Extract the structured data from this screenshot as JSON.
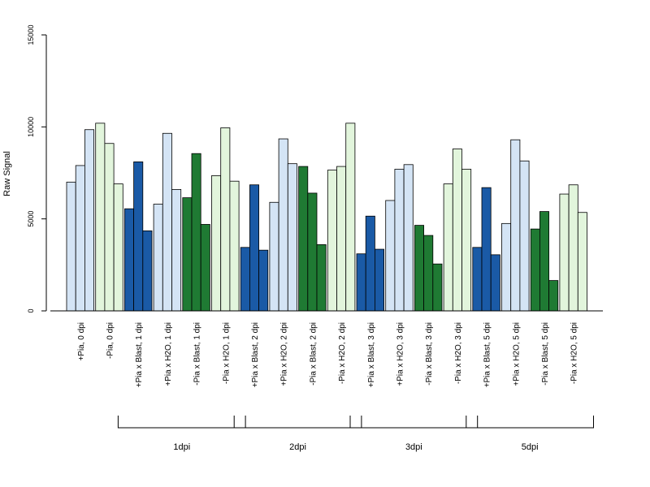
{
  "chart_data": {
    "type": "bar",
    "ylabel": "Raw Signal",
    "ylim": [
      0,
      15000
    ],
    "yticks": [
      0,
      5000,
      10000,
      15000
    ],
    "grid": false,
    "legend": "none",
    "colors": {
      "light_blue": "#d4e4f5",
      "light_green": "#e2f5dc",
      "dark_blue": "#1a5aa6",
      "dark_green": "#1f7a33",
      "edge": "#000000"
    },
    "categories": [
      {
        "label": "+Pia, 0 dpi",
        "color": "light_blue",
        "values": [
          7000,
          7900,
          9850
        ]
      },
      {
        "label": "-Pia, 0 dpi",
        "color": "light_green",
        "values": [
          10200,
          9100,
          6900
        ]
      },
      {
        "label": "+Pia x Blast, 1 dpi",
        "color": "dark_blue",
        "values": [
          5550,
          8100,
          4350
        ]
      },
      {
        "label": "+Pia x H2O, 1 dpi",
        "color": "light_blue",
        "values": [
          5800,
          9650,
          6600
        ]
      },
      {
        "label": "-Pia x Blast, 1 dpi",
        "color": "dark_green",
        "values": [
          6150,
          8550,
          4700
        ]
      },
      {
        "label": "-Pia x H2O, 1 dpi",
        "color": "light_green",
        "values": [
          7350,
          9950,
          7050
        ]
      },
      {
        "label": "+Pia x Blast, 2 dpi",
        "color": "dark_blue",
        "values": [
          3450,
          6850,
          3300
        ]
      },
      {
        "label": "+Pia x H2O, 2 dpi",
        "color": "light_blue",
        "values": [
          5900,
          9350,
          8000
        ]
      },
      {
        "label": "-Pia x Blast, 2 dpi",
        "color": "dark_green",
        "values": [
          7850,
          6400,
          3600
        ]
      },
      {
        "label": "-Pia x H2O, 2 dpi",
        "color": "light_green",
        "values": [
          7650,
          7850,
          10200
        ]
      },
      {
        "label": "+Pia x Blast, 3 dpi",
        "color": "dark_blue",
        "values": [
          3100,
          5150,
          3350
        ]
      },
      {
        "label": "+Pia x H2O, 3 dpi",
        "color": "light_blue",
        "values": [
          6000,
          7700,
          7950
        ]
      },
      {
        "label": "-Pia x Blast, 3 dpi",
        "color": "dark_green",
        "values": [
          4650,
          4100,
          2550
        ]
      },
      {
        "label": "-Pia x H2O, 3 dpi",
        "color": "light_green",
        "values": [
          6900,
          8800,
          7700
        ]
      },
      {
        "label": "+Pia x Blast, 5 dpi",
        "color": "dark_blue",
        "values": [
          3450,
          6700,
          3050
        ]
      },
      {
        "label": "+Pia x H2O, 5 dpi",
        "color": "light_blue",
        "values": [
          4750,
          9300,
          8150
        ]
      },
      {
        "label": "-Pia x Blast, 5 dpi",
        "color": "dark_green",
        "values": [
          4450,
          5400,
          1650
        ]
      },
      {
        "label": "-Pia x H2O, 5 dpi",
        "color": "light_green",
        "values": [
          6350,
          6850,
          5350
        ]
      }
    ],
    "groups": [
      {
        "label": "1dpi",
        "from": 2,
        "to": 5
      },
      {
        "label": "2dpi",
        "from": 6,
        "to": 9
      },
      {
        "label": "3dpi",
        "from": 10,
        "to": 13
      },
      {
        "label": "5dpi",
        "from": 14,
        "to": 17
      }
    ]
  }
}
